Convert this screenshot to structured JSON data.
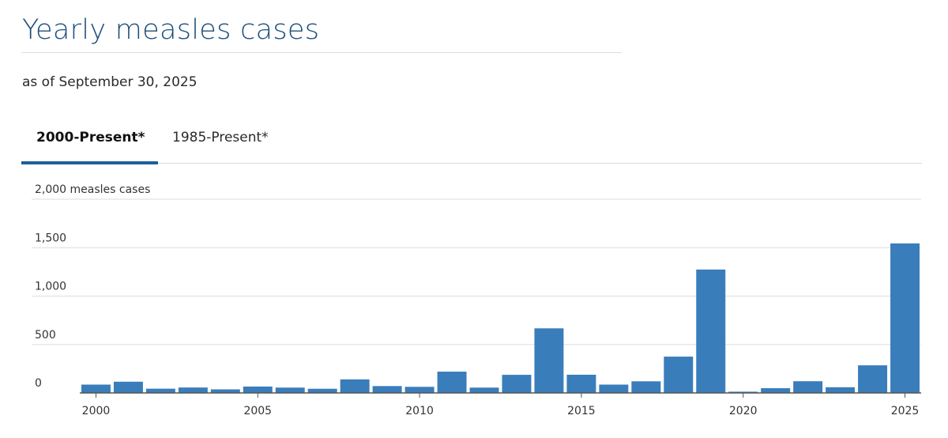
{
  "header": {
    "title": "Yearly measles cases",
    "subtitle": "as of September 30, 2025"
  },
  "tabs": [
    {
      "label": "2000-Present*",
      "active": true
    },
    {
      "label": "1985-Present*",
      "active": false
    }
  ],
  "colors": {
    "bar": "#3a7dbb",
    "title": "#1d4e7a",
    "tab_underline": "#1f5f9c",
    "gridline": "#dddddd"
  },
  "chart_data": {
    "type": "bar",
    "title": "",
    "xlabel": "",
    "ylabel": "",
    "y_unit_label": "measles cases",
    "categories": [
      "2000",
      "2001",
      "2002",
      "2003",
      "2004",
      "2005",
      "2006",
      "2007",
      "2008",
      "2009",
      "2010",
      "2011",
      "2012",
      "2013",
      "2014",
      "2015",
      "2016",
      "2017",
      "2018",
      "2019",
      "2020",
      "2021",
      "2022",
      "2023",
      "2024",
      "2025"
    ],
    "values": [
      86,
      116,
      44,
      56,
      37,
      66,
      55,
      43,
      140,
      71,
      63,
      220,
      55,
      187,
      667,
      188,
      86,
      120,
      375,
      1274,
      13,
      49,
      121,
      59,
      285,
      1544
    ],
    "ylim": [
      0,
      2000
    ],
    "yticks": [
      {
        "value": 0,
        "label": "0"
      },
      {
        "value": 500,
        "label": "500"
      },
      {
        "value": 1000,
        "label": "1,000"
      },
      {
        "value": 1500,
        "label": "1,500"
      },
      {
        "value": 2000,
        "label": "2,000 measles cases"
      }
    ],
    "xticks": [
      "2000",
      "2005",
      "2010",
      "2015",
      "2020",
      "2025"
    ],
    "grid": true,
    "legend": "none"
  }
}
